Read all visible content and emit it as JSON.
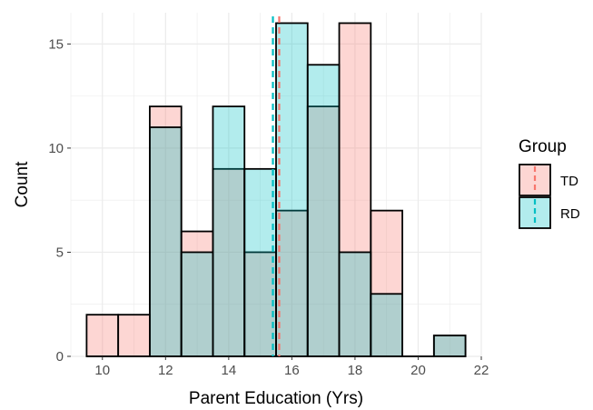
{
  "chart_data": {
    "type": "histogram",
    "xlabel": "Parent Education (Yrs)",
    "ylabel": "Count",
    "xlim": [
      9,
      22
    ],
    "ylim": [
      0,
      16.5
    ],
    "x_ticks": [
      10,
      12,
      14,
      16,
      18,
      20,
      22
    ],
    "y_ticks": [
      0,
      5,
      10,
      15
    ],
    "bin_width": 1,
    "bins": [
      10,
      11,
      12,
      13,
      14,
      15,
      16,
      17,
      18,
      19,
      20,
      21
    ],
    "series": [
      {
        "name": "TD",
        "values": [
          2,
          2,
          12,
          6,
          9,
          5,
          7,
          12,
          16,
          7,
          0,
          1
        ],
        "fill": "#f8766d",
        "mean": 15.6
      },
      {
        "name": "RD",
        "values": [
          0,
          0,
          11,
          5,
          12,
          9,
          16,
          14,
          5,
          3,
          0,
          1
        ],
        "fill": "#00bfc4",
        "mean": 15.4
      }
    ],
    "legend": {
      "title": "Group",
      "position": "right"
    },
    "grid": true
  }
}
